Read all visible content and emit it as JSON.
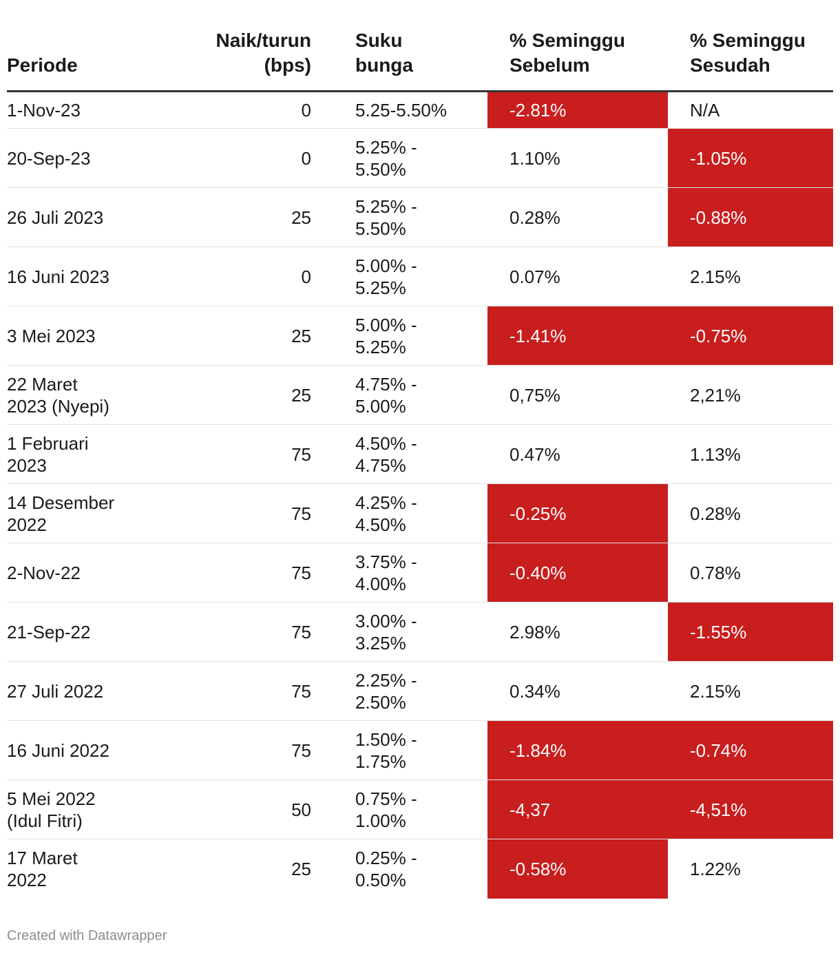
{
  "chart_data": {
    "type": "table",
    "columns": [
      "Periode",
      "Naik/turun\n(bps)",
      "Suku\nbunga",
      "% Seminggu\nSebelum",
      "% Seminggu\nSesudah"
    ],
    "rows": [
      {
        "periode": "1-Nov-23",
        "bps": "0",
        "suku": "5.25-5.50%",
        "sebelum": "-2.81%",
        "sesudah": "N/A",
        "sebelum_neg": true,
        "sesudah_neg": false
      },
      {
        "periode": "20-Sep-23",
        "bps": "0",
        "suku": "5.25% -\n5.50%",
        "sebelum": "1.10%",
        "sesudah": "-1.05%",
        "sebelum_neg": false,
        "sesudah_neg": true
      },
      {
        "periode": "26 Juli 2023",
        "bps": "25",
        "suku": "5.25% -\n5.50%",
        "sebelum": "0.28%",
        "sesudah": "-0.88%",
        "sebelum_neg": false,
        "sesudah_neg": true
      },
      {
        "periode": "16 Juni 2023",
        "bps": "0",
        "suku": "5.00% -\n5.25%",
        "sebelum": "0.07%",
        "sesudah": "2.15%",
        "sebelum_neg": false,
        "sesudah_neg": false
      },
      {
        "periode": "3 Mei 2023",
        "bps": "25",
        "suku": "5.00% -\n5.25%",
        "sebelum": "-1.41%",
        "sesudah": "-0.75%",
        "sebelum_neg": true,
        "sesudah_neg": true
      },
      {
        "periode": "22 Maret\n2023 (Nyepi)",
        "bps": "25",
        "suku": "4.75% -\n5.00%",
        "sebelum": "0,75%",
        "sesudah": "2,21%",
        "sebelum_neg": false,
        "sesudah_neg": false
      },
      {
        "periode": "1 Februari\n2023",
        "bps": "75",
        "suku": "4.50% -\n4.75%",
        "sebelum": "0.47%",
        "sesudah": "1.13%",
        "sebelum_neg": false,
        "sesudah_neg": false
      },
      {
        "periode": "14 Desember\n2022",
        "bps": "75",
        "suku": "4.25% -\n4.50%",
        "sebelum": "-0.25%",
        "sesudah": "0.28%",
        "sebelum_neg": true,
        "sesudah_neg": false
      },
      {
        "periode": "2-Nov-22",
        "bps": "75",
        "suku": "3.75% -\n4.00%",
        "sebelum": "-0.40%",
        "sesudah": "0.78%",
        "sebelum_neg": true,
        "sesudah_neg": false
      },
      {
        "periode": "21-Sep-22",
        "bps": "75",
        "suku": "3.00% -\n3.25%",
        "sebelum": "2.98%",
        "sesudah": "-1.55%",
        "sebelum_neg": false,
        "sesudah_neg": true
      },
      {
        "periode": "27 Juli 2022",
        "bps": "75",
        "suku": "2.25% -\n2.50%",
        "sebelum": "0.34%",
        "sesudah": "2.15%",
        "sebelum_neg": false,
        "sesudah_neg": false
      },
      {
        "periode": "16 Juni 2022",
        "bps": "75",
        "suku": "1.50% -\n1.75%",
        "sebelum": "-1.84%",
        "sesudah": "-0.74%",
        "sebelum_neg": true,
        "sesudah_neg": true
      },
      {
        "periode": "5 Mei 2022\n(Idul Fitri)",
        "bps": "50",
        "suku": "0.75% -\n1.00%",
        "sebelum": "-4,37",
        "sesudah": "-4,51%",
        "sebelum_neg": true,
        "sesudah_neg": true
      },
      {
        "periode": "17 Maret\n2022",
        "bps": "25",
        "suku": "0.25% -\n0.50%",
        "sebelum": "-0.58%",
        "sesudah": "1.22%",
        "sebelum_neg": true,
        "sesudah_neg": false
      }
    ],
    "highlight_color": "#c81e1e"
  },
  "footer": {
    "credit": "Created with Datawrapper"
  }
}
